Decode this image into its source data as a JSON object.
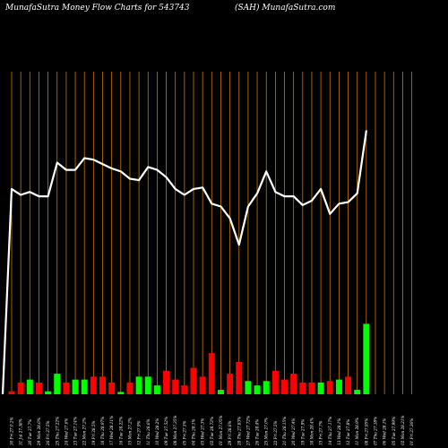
{
  "header": {
    "left": "MunafaSutra  Money Flow  Charts for 543743",
    "right": "(SAH) MunafaSutra.com"
  },
  "chart_data": {
    "type": "bar",
    "title": "MunafaSutra  Money Flow  Charts for 543743",
    "subtitle": "(SAH) MunafaSutra.com",
    "colors": {
      "background": "#000000",
      "gridline": "#c87800",
      "line": "#ffffff",
      "up": "#00ff00",
      "down": "#ff0000"
    },
    "categories": [
      "30 Fri 27.0.2%",
      "31 Jul 27.38%",
      "30 Tue 27.7%",
      "29 Mon 28.6%",
      "26 Fri 27.5%",
      "25 Thu 27.22%",
      "24 Wed 27.6%",
      "23 Tue 27.14%",
      "22 Mon 27.2%",
      "19 Fri 28.5%",
      "18 Thu 28.97%",
      "17 Wed 28.11%",
      "16 Tue 28.22%",
      "15 Mon 27.2%",
      "12 Fri 27.9%",
      "11 Thu 28.6%",
      "10 Wed 28.2%",
      "09 Tue 27.52%",
      "08 Mon 27.35%",
      "05 Fri 27.5%",
      "04 Thu 28.1%",
      "03 Wed 27.3%",
      "02 Tue 28.72%",
      "01 Mon 27.05%",
      "29 Fri 28.6%",
      "28 Thu 27.83%",
      "27 Wed 27.72%",
      "26 Tue 28.4%",
      "25 Mon 27.0%",
      "22 Fri 27.5%",
      "21 Thu 28.15%",
      "20 Wed 27.4%",
      "19 Tue 27.9%",
      "18 Mon 28.4%",
      "15 Fri 27.7%",
      "14 Thu 27.17%",
      "13 Wed 28.1%",
      "12 Tue 27.8%",
      "11 Mon 28.9%",
      "08 Fri 27.95%",
      "07 Thu 27.38%",
      "06 Wed 28.1%",
      "05 Tue 27.99%",
      "02 Mon 28.21%",
      "01 Fri 27.36%"
    ],
    "flow_values": [
      1,
      4,
      5,
      4,
      1,
      7,
      4,
      5,
      5,
      6,
      6,
      4,
      0.8,
      4,
      6,
      6,
      3,
      8,
      5,
      3,
      9,
      6,
      14,
      1.5,
      7,
      11,
      4.5,
      3,
      4.5,
      8,
      5,
      7,
      4,
      4,
      4,
      4.5,
      5,
      6,
      1.5,
      24,
      0,
      0,
      0,
      0,
      0
    ],
    "flow_direction": [
      "down",
      "down",
      "up",
      "down",
      "up",
      "up",
      "down",
      "up",
      "up",
      "down",
      "down",
      "down",
      "up",
      "down",
      "up",
      "up",
      "up",
      "down",
      "down",
      "down",
      "down",
      "down",
      "down",
      "up",
      "down",
      "down",
      "up",
      "up",
      "up",
      "down",
      "down",
      "down",
      "down",
      "down",
      "up",
      "down",
      "up",
      "down",
      "up",
      "up",
      "up",
      "up",
      "up",
      "up",
      "up"
    ],
    "price_line": [
      0,
      70,
      68,
      69,
      67.5,
      67.5,
      79,
      76.5,
      76.5,
      80.5,
      80,
      78.5,
      77,
      76,
      73.5,
      73,
      77.5,
      76.5,
      74,
      70,
      68,
      70,
      70.5,
      65,
      64,
      60,
      51,
      64,
      68.5,
      76,
      69,
      67.5,
      67.5,
      64.5,
      66,
      70,
      61.5,
      65,
      65.5,
      68.5,
      90,
      90,
      90,
      90,
      90
    ],
    "ylim_flow": [
      0,
      110
    ],
    "ylim_line": [
      0,
      110
    ],
    "grid": true
  }
}
